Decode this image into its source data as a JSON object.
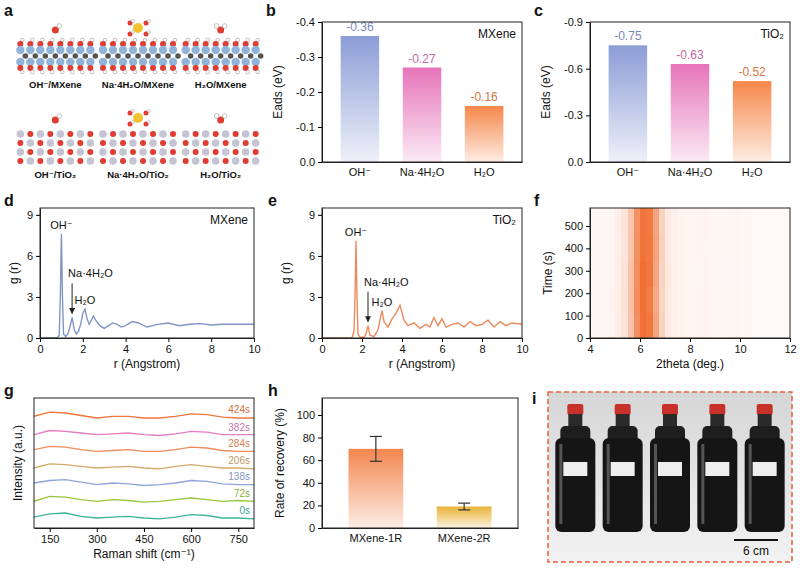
{
  "chart_data": [
    {
      "type": "structure",
      "panel": "a",
      "labels": [
        "OH⁻/MXene",
        "Na·4H₂O/MXene",
        "H₂O/MXene",
        "OH⁻/TiO₂",
        "Na·4H₂O/TiO₂",
        "H₂O/TiO₂"
      ]
    },
    {
      "type": "bar",
      "panel": "b",
      "annotations": [
        "MXene"
      ],
      "y_label": "Eads (eV)",
      "categories": [
        "OH⁻",
        "Na·4H₂O",
        "H₂O"
      ],
      "values": [
        -0.36,
        -0.27,
        -0.16
      ],
      "colors": [
        "#8b9dd6",
        "#e674b9",
        "#f5874a"
      ],
      "ylim": [
        0,
        -0.4
      ],
      "yticks": [
        {
          "value": 0,
          "label": "0.0"
        },
        -0.1,
        -0.2,
        -0.3,
        -0.4
      ],
      "data_labels": true
    },
    {
      "type": "bar",
      "panel": "c",
      "annotations": [
        "TiO₂"
      ],
      "y_label": "Eads (eV)",
      "categories": [
        "OH⁻",
        "Na·4H₂O",
        "H₂O"
      ],
      "values": [
        -0.75,
        -0.63,
        -0.52
      ],
      "colors": [
        "#8b9dd6",
        "#e674b9",
        "#f5874a"
      ],
      "ylim": [
        0,
        -0.9
      ],
      "yticks": [
        {
          "value": 0,
          "label": "0.0"
        },
        -0.3,
        -0.6,
        -0.9
      ],
      "data_labels": true
    },
    {
      "type": "line",
      "panel": "d",
      "annotations": [
        "MXene"
      ],
      "x_label": "r (Angstrom)",
      "y_label": "g (r)",
      "x": [
        0,
        0.8,
        0.9,
        0.95,
        1.0,
        1.05,
        1.1,
        1.2,
        1.3,
        1.4,
        1.5,
        1.6,
        1.7,
        1.8,
        1.9,
        2.0,
        2.1,
        2.2,
        2.3,
        2.4,
        2.5,
        2.6,
        2.8,
        3.0,
        3.2,
        3.4,
        3.6,
        3.8,
        4.0,
        4.3,
        4.6,
        5.0,
        5.5,
        6.0,
        6.5,
        7.0,
        7.5,
        8.0,
        8.5,
        9.0,
        9.5,
        10.0
      ],
      "values": [
        0,
        0,
        0.2,
        3,
        7.6,
        3,
        0.3,
        0.1,
        0.3,
        0.8,
        1.5,
        0.6,
        0.3,
        0.5,
        1.0,
        1.8,
        2.1,
        1.4,
        1.0,
        1.3,
        1.6,
        1.3,
        0.9,
        0.7,
        0.9,
        1.1,
        1.0,
        0.8,
        0.9,
        1.2,
        1.1,
        0.8,
        1.0,
        1.1,
        0.9,
        1.0,
        1.05,
        0.95,
        1.0,
        1.0,
        1.0,
        1.0
      ],
      "color": "#7f95c6",
      "xlim": [
        0,
        10
      ],
      "xticks": [
        0,
        2,
        4,
        6,
        8,
        10
      ],
      "ylim": [
        0,
        9.5
      ],
      "yticks": [
        0,
        3,
        6,
        9
      ],
      "peak_labels": [
        {
          "text": "OH⁻",
          "x": 1.0,
          "y": 7.6
        },
        {
          "text": "Na·4H₂O",
          "x": 1.5,
          "y": 1.5,
          "arrow": true
        },
        {
          "text": "H₂O",
          "x": 2.1,
          "y": 2.1
        }
      ]
    },
    {
      "type": "line",
      "panel": "e",
      "annotations": [
        "TiO₂"
      ],
      "x_label": "r (Angstrom)",
      "y_label": "g (r)",
      "x": [
        0,
        1.5,
        1.6,
        1.65,
        1.7,
        1.75,
        1.8,
        1.9,
        2.1,
        2.2,
        2.3,
        2.4,
        2.6,
        2.8,
        3.0,
        3.1,
        3.3,
        3.5,
        3.7,
        3.9,
        4.1,
        4.3,
        4.6,
        4.9,
        5.2,
        5.4,
        5.6,
        5.8,
        6.0,
        6.2,
        6.5,
        6.8,
        7.1,
        7.4,
        7.7,
        8.0,
        8.3,
        8.6,
        8.9,
        9.2,
        9.5,
        10.0
      ],
      "values": [
        0,
        0,
        0.5,
        3,
        7.1,
        3,
        0.3,
        0.05,
        0.05,
        0.3,
        0.9,
        0.2,
        0.1,
        0.6,
        2.0,
        1.2,
        0.8,
        1.4,
        1.8,
        2.4,
        1.3,
        0.9,
        1.1,
        0.7,
        1.0,
        0.8,
        1.5,
        0.9,
        1.4,
        0.8,
        1.0,
        1.1,
        0.8,
        1.2,
        0.9,
        1.0,
        1.3,
        0.8,
        1.2,
        0.9,
        1.1,
        1.0
      ],
      "color": "#ec8a5c",
      "xlim": [
        0,
        10
      ],
      "xticks": [
        0,
        2,
        4,
        6,
        8,
        10
      ],
      "ylim": [
        0,
        9.5
      ],
      "yticks": [
        0,
        3,
        6,
        9
      ],
      "peak_labels": [
        {
          "text": "OH⁻",
          "x": 1.7,
          "y": 7.1
        },
        {
          "text": "Na·4H₂O",
          "x": 2.3,
          "y": 0.9,
          "arrow": true
        },
        {
          "text": "H₂O",
          "x": 3.0,
          "y": 2.0
        }
      ]
    },
    {
      "type": "heatmap",
      "panel": "f",
      "x_label": "2theta (deg.)",
      "y_label": "Time (s)",
      "x_edges": [
        4,
        4.25,
        4.5,
        4.75,
        5,
        5.25,
        5.5,
        5.75,
        6,
        6.25,
        6.5,
        6.75,
        7,
        7.25,
        7.5,
        7.75,
        8,
        8.25,
        8.5,
        8.75,
        9,
        9.25,
        9.5,
        9.75,
        10,
        10.25,
        10.5,
        10.75,
        11,
        11.25,
        11.5,
        11.75,
        12
      ],
      "y_edges": [
        0,
        116,
        232,
        348,
        464,
        580
      ],
      "values": [
        [
          0.05,
          0.05,
          0.06,
          0.07,
          0.1,
          0.18,
          0.4,
          0.75,
          0.95,
          0.9,
          0.6,
          0.3,
          0.15,
          0.1,
          0.08,
          0.07,
          0.06,
          0.07,
          0.08,
          0.06,
          0.05,
          0.05,
          0.06,
          0.07,
          0.05,
          0.05,
          0.04,
          0.04,
          0.04,
          0.04,
          0.04,
          0.04
        ],
        [
          0.05,
          0.05,
          0.06,
          0.08,
          0.11,
          0.2,
          0.42,
          0.78,
          0.96,
          0.88,
          0.58,
          0.28,
          0.14,
          0.1,
          0.08,
          0.07,
          0.06,
          0.07,
          0.08,
          0.06,
          0.05,
          0.05,
          0.06,
          0.07,
          0.05,
          0.05,
          0.04,
          0.04,
          0.04,
          0.04,
          0.04,
          0.04
        ],
        [
          0.05,
          0.05,
          0.06,
          0.07,
          0.1,
          0.19,
          0.41,
          0.76,
          0.97,
          0.91,
          0.6,
          0.29,
          0.15,
          0.1,
          0.08,
          0.07,
          0.06,
          0.06,
          0.08,
          0.06,
          0.05,
          0.05,
          0.06,
          0.06,
          0.05,
          0.05,
          0.04,
          0.04,
          0.04,
          0.04,
          0.04,
          0.04
        ],
        [
          0.05,
          0.05,
          0.06,
          0.07,
          0.1,
          0.17,
          0.38,
          0.74,
          0.94,
          0.9,
          0.62,
          0.31,
          0.15,
          0.1,
          0.08,
          0.07,
          0.06,
          0.07,
          0.07,
          0.06,
          0.05,
          0.05,
          0.06,
          0.07,
          0.05,
          0.05,
          0.04,
          0.04,
          0.04,
          0.04,
          0.04,
          0.04
        ],
        [
          0.05,
          0.05,
          0.06,
          0.07,
          0.1,
          0.18,
          0.39,
          0.73,
          0.93,
          0.89,
          0.6,
          0.3,
          0.15,
          0.1,
          0.08,
          0.07,
          0.06,
          0.07,
          0.08,
          0.06,
          0.05,
          0.05,
          0.06,
          0.07,
          0.05,
          0.05,
          0.04,
          0.04,
          0.04,
          0.04,
          0.04,
          0.04
        ]
      ],
      "color": "#ef6a2c",
      "zlim": [
        0,
        1
      ],
      "xlim": [
        4,
        12
      ],
      "xticks": [
        4,
        6,
        8,
        10,
        12
      ],
      "ylim": [
        0,
        580
      ],
      "yticks": [
        0,
        100,
        200,
        300,
        400,
        500
      ]
    },
    {
      "type": "line",
      "panel": "g",
      "x_label": "Raman shift (cm⁻¹)",
      "y_label": "Intensity (a.u.)",
      "x": [
        100,
        150,
        200,
        250,
        300,
        350,
        400,
        450,
        500,
        550,
        600,
        650,
        700,
        750,
        800
      ],
      "series": [
        {
          "name": "0s",
          "color": "#3fb59a",
          "values": [
            0.65,
            0.85,
            0.9,
            0.7,
            0.6,
            0.65,
            0.7,
            0.6,
            0.55,
            0.65,
            0.8,
            0.75,
            0.6,
            0.6,
            0.55
          ]
        },
        {
          "name": "72s",
          "color": "#9bc53d",
          "values": [
            1.6,
            1.9,
            1.85,
            1.7,
            1.6,
            1.7,
            1.65,
            1.55,
            1.6,
            1.7,
            1.8,
            1.7,
            1.6,
            1.65,
            1.6
          ]
        },
        {
          "name": "138s",
          "color": "#8ea6d9",
          "values": [
            2.7,
            2.85,
            2.9,
            2.75,
            2.6,
            2.7,
            2.65,
            2.55,
            2.6,
            2.7,
            2.85,
            2.8,
            2.65,
            2.6,
            2.6
          ]
        },
        {
          "name": "206s",
          "color": "#d4a86a",
          "values": [
            3.6,
            3.85,
            3.8,
            3.7,
            3.6,
            3.65,
            3.7,
            3.6,
            3.55,
            3.7,
            3.8,
            3.7,
            3.6,
            3.6,
            3.55
          ]
        },
        {
          "name": "284s",
          "color": "#f08c5c",
          "values": [
            4.7,
            4.9,
            4.85,
            4.7,
            4.6,
            4.65,
            4.7,
            4.6,
            4.6,
            4.7,
            4.85,
            4.8,
            4.65,
            4.6,
            4.6
          ]
        },
        {
          "name": "382s",
          "color": "#e47cc0",
          "values": [
            5.6,
            5.85,
            5.8,
            5.7,
            5.6,
            5.65,
            5.7,
            5.6,
            5.55,
            5.65,
            5.8,
            5.75,
            5.6,
            5.6,
            5.6
          ]
        },
        {
          "name": "424s",
          "color": "#f0763c",
          "values": [
            6.7,
            6.95,
            6.9,
            6.75,
            6.6,
            6.7,
            6.7,
            6.6,
            6.6,
            6.7,
            6.85,
            6.8,
            6.65,
            6.6,
            6.6
          ]
        }
      ],
      "xlim": [
        100,
        800
      ],
      "xticks": [
        150,
        300,
        450,
        600,
        750
      ],
      "ylim": [
        0,
        7.8
      ],
      "tick_labels": "x"
    },
    {
      "type": "bar",
      "panel": "h",
      "y_label": "Rate of recovery (%)",
      "categories": [
        "MXene-1R",
        "MXene-2R"
      ],
      "values": [
        70,
        19
      ],
      "errors": [
        11,
        3
      ],
      "colors": [
        "#f3864f",
        "#e9b236"
      ],
      "ylim": [
        0,
        115
      ],
      "yticks": [
        0,
        20,
        40,
        60,
        80,
        100
      ]
    },
    {
      "type": "photo",
      "panel": "i",
      "annotations": [
        "6 cm"
      ]
    }
  ]
}
